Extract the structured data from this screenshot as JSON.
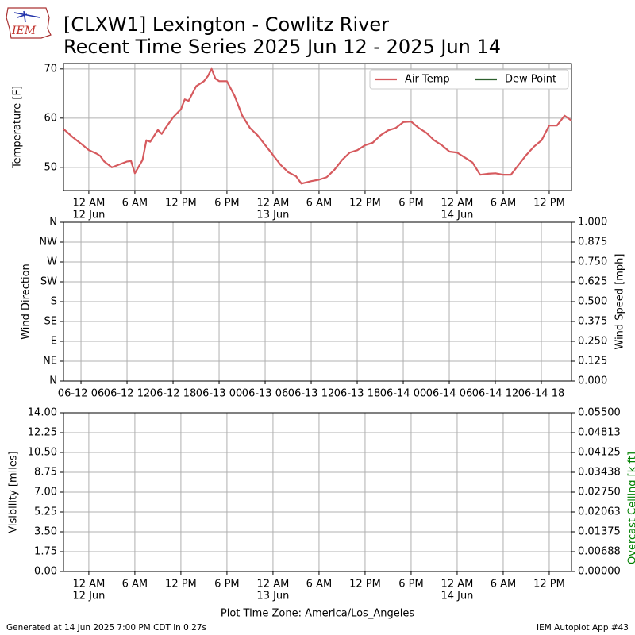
{
  "header": {
    "title": [
      "[CLXW1] Lexington - Cowlitz River",
      "Recent Time Series 2025 Jun 12 - 2025 Jun 14"
    ],
    "logo_text": "IEM"
  },
  "footer": {
    "timezone": "Plot Time Zone: America/Los_Angeles",
    "generated": "Generated at 14 Jun 2025 7:00 PM CDT in 0.27s",
    "app": "IEM Autoplot App #43"
  },
  "chart_data": [
    {
      "type": "line",
      "ylabel": "Temperature [F]",
      "grid": true,
      "legend": "upper right",
      "xlim": [
        -3.3,
        62.9
      ],
      "ylim": [
        45.3,
        71.1
      ],
      "yticks": [
        50,
        60,
        70
      ],
      "xticks": [
        {
          "value": 0,
          "label": "12 AM"
        },
        {
          "value": 6,
          "label": "6 AM"
        },
        {
          "value": 12,
          "label": "12 PM"
        },
        {
          "value": 18,
          "label": "6 PM"
        },
        {
          "value": 24,
          "label": "12 AM"
        },
        {
          "value": 30,
          "label": "6 AM"
        },
        {
          "value": 36,
          "label": "12 PM"
        },
        {
          "value": 42,
          "label": "6 PM"
        },
        {
          "value": 48,
          "label": "12 AM"
        },
        {
          "value": 54,
          "label": "6 AM"
        },
        {
          "value": 60,
          "label": "12 PM"
        }
      ],
      "xtick_dates": [
        {
          "value": 0,
          "label": "12 Jun"
        },
        {
          "value": 24,
          "label": "13 Jun"
        },
        {
          "value": 48,
          "label": "14 Jun"
        }
      ],
      "series": [
        {
          "name": "Air Temp",
          "color": "#d65a5e",
          "x": [
            -3.3,
            -2,
            -1,
            0,
            1,
            1.5,
            2,
            3,
            4,
            5,
            5.5,
            6,
            7,
            7.5,
            8,
            9,
            9.5,
            10,
            11,
            12,
            12.5,
            13,
            14,
            15,
            15.5,
            16,
            16.5,
            17,
            18,
            19,
            20,
            21,
            22,
            23,
            24,
            25,
            26,
            27,
            27.7,
            29,
            30,
            31,
            32,
            33,
            34,
            35,
            36,
            37,
            38,
            39,
            40,
            41,
            42,
            43,
            44,
            45,
            46,
            47,
            48,
            49,
            50,
            51,
            52,
            53,
            54,
            55,
            56,
            57,
            58,
            59,
            60,
            61,
            62,
            62.9
          ],
          "values": [
            57.8,
            56,
            54.8,
            53.5,
            52.8,
            52.3,
            51.2,
            50,
            50.6,
            51.2,
            51.3,
            48.8,
            51.5,
            55.5,
            55.2,
            57.6,
            56.8,
            58,
            60.2,
            61.8,
            63.8,
            63.5,
            66.5,
            67.5,
            68.5,
            70,
            68,
            67.5,
            67.5,
            64.5,
            60.5,
            58,
            56.5,
            54.5,
            52.5,
            50.5,
            49,
            48.2,
            46.7,
            47.2,
            47.5,
            48,
            49.5,
            51.5,
            53,
            53.5,
            54.5,
            55,
            56.5,
            57.5,
            58,
            59.2,
            59.3,
            58,
            57,
            55.5,
            54.5,
            53.2,
            53,
            52,
            51,
            48.5,
            48.7,
            48.8,
            48.5,
            48.5,
            50.5,
            52.5,
            54.2,
            55.5,
            58.5,
            58.5,
            60.5,
            59.5
          ]
        },
        {
          "name": "Dew Point",
          "color": "#2d5f2d",
          "x": [],
          "values": []
        }
      ]
    },
    {
      "type": "line",
      "ylabel": "Wind Direction",
      "y2label": "Wind Speed [mph]",
      "grid": true,
      "xlim": [
        3.72,
        69.93
      ],
      "ylim": [
        0,
        360
      ],
      "y2lim": [
        0,
        1
      ],
      "xticks": [
        {
          "value": 6,
          "label": "06-12 06"
        },
        {
          "value": 12,
          "label": "06-12 12"
        },
        {
          "value": 18,
          "label": "06-12 18"
        },
        {
          "value": 24,
          "label": "06-13 00"
        },
        {
          "value": 30,
          "label": "06-13 06"
        },
        {
          "value": 36,
          "label": "06-13 12"
        },
        {
          "value": 42,
          "label": "06-13 18"
        },
        {
          "value": 48,
          "label": "06-14 00"
        },
        {
          "value": 54,
          "label": "06-14 06"
        },
        {
          "value": 60,
          "label": "06-14 12"
        },
        {
          "value": 66,
          "label": "06-14 18"
        }
      ],
      "yticks": [
        {
          "value": 0,
          "label": "N"
        },
        {
          "value": 45,
          "label": "NE"
        },
        {
          "value": 90,
          "label": "E"
        },
        {
          "value": 135,
          "label": "SE"
        },
        {
          "value": 180,
          "label": "S"
        },
        {
          "value": 225,
          "label": "SW"
        },
        {
          "value": 270,
          "label": "W"
        },
        {
          "value": 315,
          "label": "NW"
        },
        {
          "value": 360,
          "label": "N"
        }
      ],
      "y2ticks": [
        {
          "value": 0,
          "label": "0.000"
        },
        0.125,
        {
          "value": 0.25,
          "label": "0.250"
        },
        0.375,
        {
          "value": 0.5,
          "label": "0.500"
        },
        0.625,
        {
          "value": 0.75,
          "label": "0.750"
        },
        0.875,
        {
          "value": 1,
          "label": "1.000"
        }
      ],
      "series": []
    },
    {
      "type": "line",
      "ylabel": "Visibility [miles]",
      "y2label": "Overcast Ceiling [k ft]",
      "y2label_color": "#008000",
      "grid": true,
      "xlim": [
        -3.3,
        62.9
      ],
      "ylim": [
        0,
        14
      ],
      "y2lim": [
        0,
        0.055
      ],
      "xticks": [
        {
          "value": 0,
          "label": "12 AM"
        },
        {
          "value": 6,
          "label": "6 AM"
        },
        {
          "value": 12,
          "label": "12 PM"
        },
        {
          "value": 18,
          "label": "6 PM"
        },
        {
          "value": 24,
          "label": "12 AM"
        },
        {
          "value": 30,
          "label": "6 AM"
        },
        {
          "value": 36,
          "label": "12 PM"
        },
        {
          "value": 42,
          "label": "6 PM"
        },
        {
          "value": 48,
          "label": "12 AM"
        },
        {
          "value": 54,
          "label": "6 AM"
        },
        {
          "value": 60,
          "label": "12 PM"
        }
      ],
      "xtick_dates": [
        {
          "value": 0,
          "label": "12 Jun"
        },
        {
          "value": 24,
          "label": "13 Jun"
        },
        {
          "value": 48,
          "label": "14 Jun"
        }
      ],
      "yticks": [
        {
          "value": 0,
          "label": "0.00"
        },
        1.75,
        {
          "value": 3.5,
          "label": "3.50"
        },
        5.25,
        {
          "value": 7,
          "label": "7.00"
        },
        8.75,
        {
          "value": 10.5,
          "label": "10.50"
        },
        12.25,
        {
          "value": 14,
          "label": "14.00"
        }
      ],
      "y2ticks": [
        {
          "value": 0,
          "label": "0.00000"
        },
        {
          "value": 0.006875,
          "label": "0.00688"
        },
        {
          "value": 0.01375,
          "label": "0.01375"
        },
        {
          "value": 0.020625,
          "label": "0.02063"
        },
        {
          "value": 0.0275,
          "label": "0.02750"
        },
        {
          "value": 0.034375,
          "label": "0.03438"
        },
        {
          "value": 0.04125,
          "label": "0.04125"
        },
        {
          "value": 0.048125,
          "label": "0.04813"
        },
        {
          "value": 0.055,
          "label": "0.05500"
        }
      ],
      "series": []
    }
  ]
}
